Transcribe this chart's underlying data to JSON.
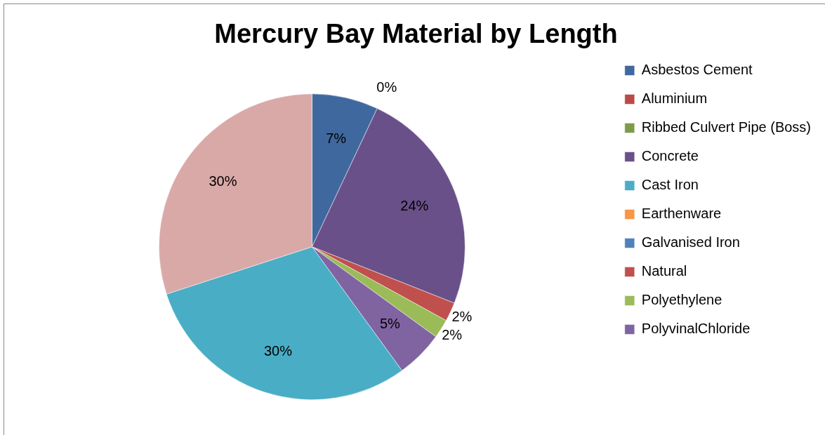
{
  "chart_data": {
    "type": "pie",
    "title": "Mercury Bay Material by Length",
    "categories": [
      "Asbestos Cement",
      "Aluminium",
      "Ribbed Culvert Pipe (Boss)",
      "Concrete",
      "Cast Iron",
      "Earthenware",
      "Galvanised Iron",
      "Natural",
      "Polyethylene",
      "PolyvinalChloride",
      null,
      null
    ],
    "values": [
      7,
      0,
      0,
      24,
      0,
      0,
      0,
      2,
      2,
      5,
      30,
      30
    ],
    "value_labels": [
      "7%",
      "0%",
      null,
      "24%",
      null,
      null,
      null,
      "2%",
      "2%",
      "5%",
      "30%",
      "30%"
    ],
    "colors": [
      "#3f689e",
      "#b94a48",
      "#7f9a48",
      "#6a5089",
      "#4bacc6",
      "#f79646",
      "#4f81bd",
      "#c0504d",
      "#9bbb59",
      "#8064a2",
      "#4aadc6",
      "#d9a9a8"
    ],
    "legend": "right"
  }
}
